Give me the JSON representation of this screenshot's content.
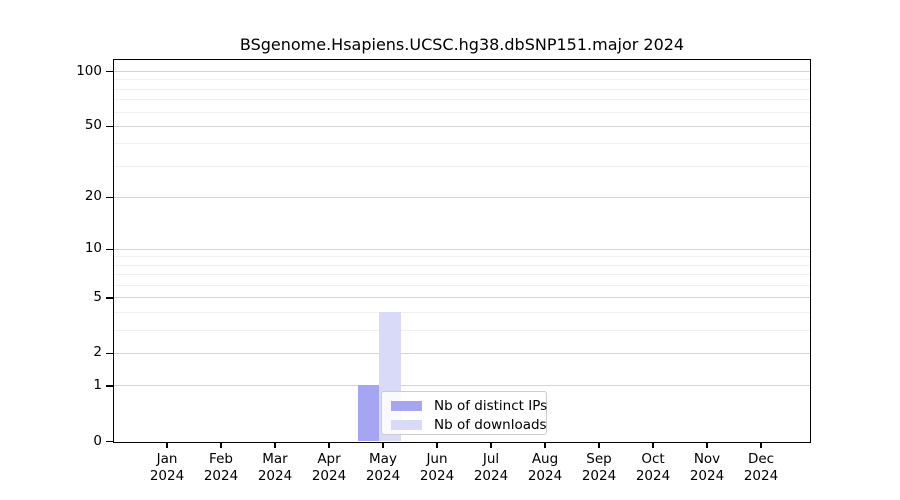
{
  "chart_data": {
    "type": "bar",
    "title": "BSgenome.Hsapiens.UCSC.hg38.dbSNP151.major 2024",
    "x_categories": [
      "Jan",
      "Feb",
      "Mar",
      "Apr",
      "May",
      "Jun",
      "Jul",
      "Aug",
      "Sep",
      "Oct",
      "Nov",
      "Dec"
    ],
    "x_year": "2024",
    "series": [
      {
        "name": "Nb of distinct IPs",
        "color": "#a5a5f1",
        "values": [
          0,
          0,
          0,
          0,
          1,
          0,
          0,
          0,
          0,
          0,
          0,
          0
        ]
      },
      {
        "name": "Nb of downloads",
        "color": "#d9d9f8",
        "values": [
          0,
          0,
          0,
          0,
          4,
          0,
          0,
          0,
          0,
          0,
          0,
          0
        ]
      }
    ],
    "y_scale": "log10(value+1)",
    "y_tick_labels": [
      0,
      1,
      2,
      5,
      10,
      20,
      50,
      100
    ],
    "y_minor_gridlines": [
      3,
      4,
      6,
      7,
      8,
      9,
      30,
      40,
      60,
      70,
      80,
      90
    ],
    "ylim": [
      0,
      115
    ],
    "grid": "horizontal",
    "legend": {
      "position": "inside plot, lower center-left",
      "entries": [
        "Nb of distinct IPs",
        "Nb of downloads"
      ]
    }
  },
  "colors": {
    "background": "#ffffff",
    "axis": "#000000",
    "major_gridline": "#d4d4d4",
    "minor_gridline": "#f0f0f0",
    "legend_border": "#cccccc"
  }
}
